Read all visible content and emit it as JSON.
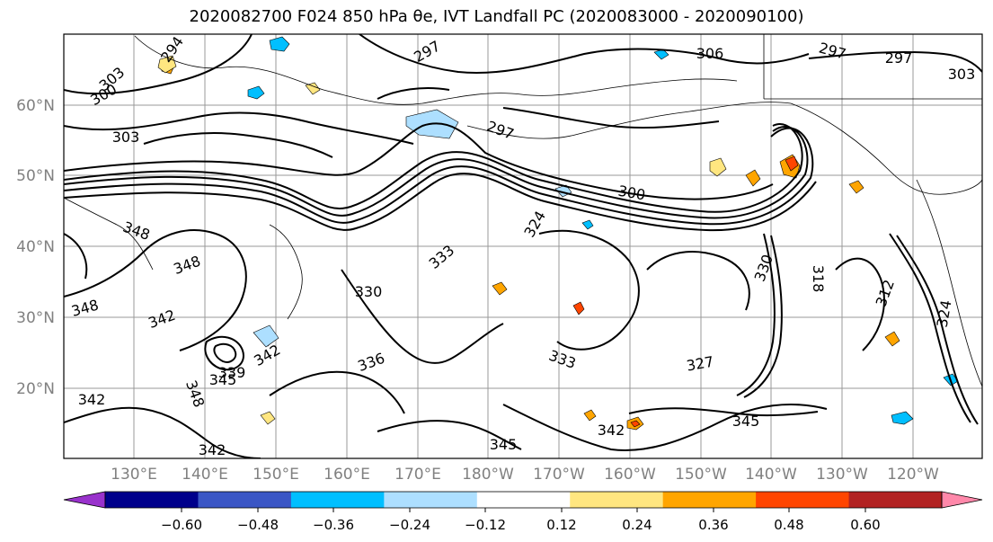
{
  "title": "2020082700 F024 850 hPa θe, IVT Landfall PC (2020083000 - 2020090100)",
  "map": {
    "lat_labels": [
      "60°N",
      "50°N",
      "40°N",
      "30°N",
      "20°N"
    ],
    "lon_labels": [
      "130°E",
      "140°E",
      "150°E",
      "160°E",
      "170°E",
      "180°W",
      "170°W",
      "160°W",
      "150°W",
      "140°W",
      "130°W",
      "120°W"
    ],
    "contour_labels": [
      {
        "text": "294"
      },
      {
        "text": "303"
      },
      {
        "text": "300"
      },
      {
        "text": "297"
      },
      {
        "text": "306"
      },
      {
        "text": "297"
      },
      {
        "text": "297"
      },
      {
        "text": "303"
      },
      {
        "text": "303"
      },
      {
        "text": "297"
      },
      {
        "text": "300"
      },
      {
        "text": "348"
      },
      {
        "text": "324"
      },
      {
        "text": "333"
      },
      {
        "text": "330"
      },
      {
        "text": "348"
      },
      {
        "text": "342"
      },
      {
        "text": "339"
      },
      {
        "text": "342"
      },
      {
        "text": "345"
      },
      {
        "text": "336"
      },
      {
        "text": "348"
      },
      {
        "text": "342"
      },
      {
        "text": "342"
      },
      {
        "text": "345"
      },
      {
        "text": "342"
      },
      {
        "text": "333"
      },
      {
        "text": "327"
      },
      {
        "text": "345"
      },
      {
        "text": "330"
      },
      {
        "text": "318"
      },
      {
        "text": "312"
      },
      {
        "text": "324"
      },
      {
        "text": "348"
      }
    ]
  },
  "colorbar": {
    "tick_labels": [
      "−0.60",
      "−0.48",
      "−0.36",
      "−0.24",
      "−0.12",
      "0.12",
      "0.24",
      "0.36",
      "0.48",
      "0.60"
    ],
    "colors": [
      "#9932CC",
      "#00008B",
      "#3A56C5",
      "#00BFFF",
      "#ADDFFF",
      "#FFFFFF",
      "#FFE680",
      "#FFA500",
      "#FF4500",
      "#B22222",
      "#FF88AA"
    ]
  }
}
